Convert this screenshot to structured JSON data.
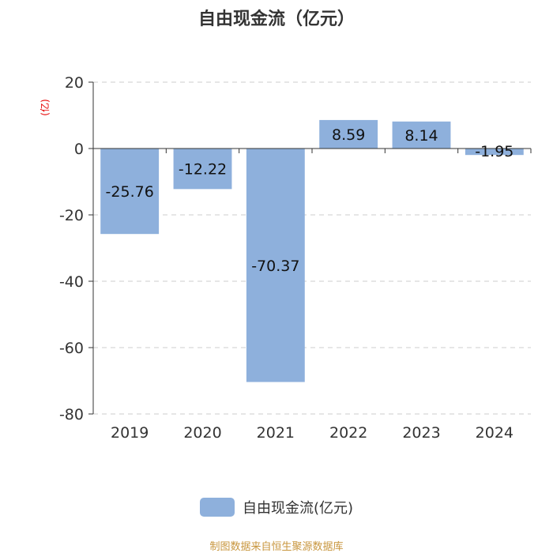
{
  "colors": {
    "bar": "#8eb0dc",
    "axis": "#333333",
    "grid": "#cccccc",
    "unit_label": "#e60000",
    "source_note": "#c8963e"
  },
  "chart_data": {
    "type": "bar",
    "title": "自由现金流（亿元）",
    "ylabel": "(亿)",
    "xlabel": "",
    "categories": [
      "2019",
      "2020",
      "2021",
      "2022",
      "2023",
      "2024"
    ],
    "series": [
      {
        "name": "自由现金流(亿元)",
        "values": [
          -25.76,
          -12.22,
          -70.37,
          8.59,
          8.14,
          -1.95
        ]
      }
    ],
    "data_labels": [
      "-25.76",
      "-12.22",
      "-70.37",
      "8.59",
      "8.14",
      "-1.95"
    ],
    "ylim": [
      -80,
      20
    ],
    "yticks": [
      20,
      0,
      -20,
      -40,
      -60,
      -80
    ],
    "grid": true,
    "grid_style": "dashed",
    "legend_position": "bottom"
  },
  "source_note": "制图数据来自恒生聚源数据库"
}
